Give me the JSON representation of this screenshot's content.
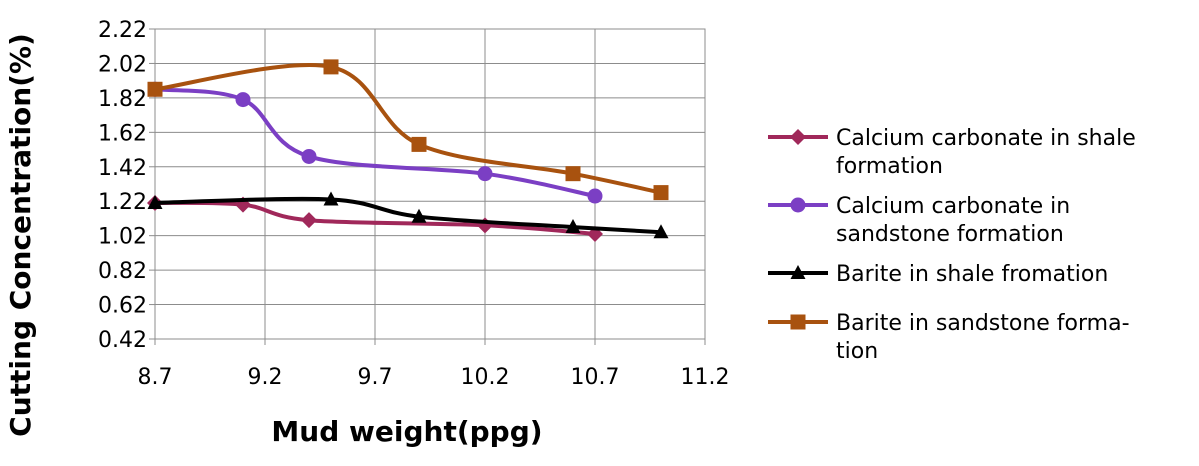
{
  "chart_data": {
    "type": "line",
    "xlabel": "Mud weight(ppg)",
    "ylabel": "Cutting Concentration(%)",
    "xlim": [
      8.7,
      11.2
    ],
    "ylim": [
      0.42,
      2.22
    ],
    "x_ticks": [
      "8.7",
      "9.2",
      "9.7",
      "10.2",
      "10.7",
      "11.2"
    ],
    "y_ticks": [
      "0.42",
      "0.62",
      "0.82",
      "1.02",
      "1.22",
      "1.42",
      "1.62",
      "1.82",
      "2.02",
      "2.22"
    ],
    "grid": true,
    "legend_position": "right",
    "series": [
      {
        "name": "Calcium carbonate in shale formation",
        "legend_lines": [
          "Calcium carbonate in shale",
          "formation"
        ],
        "color": "#A0285A",
        "marker": "diamond",
        "points": [
          [
            8.7,
            1.21
          ],
          [
            9.1,
            1.2
          ],
          [
            9.4,
            1.11
          ],
          [
            10.2,
            1.08
          ],
          [
            10.7,
            1.03
          ]
        ]
      },
      {
        "name": "Calcium carbonate in sandstone formation",
        "legend_lines": [
          "Calcium carbonate in",
          "sandstone formation"
        ],
        "color": "#7B3FC4",
        "marker": "circle",
        "points": [
          [
            8.7,
            1.87
          ],
          [
            9.1,
            1.81
          ],
          [
            9.4,
            1.48
          ],
          [
            10.2,
            1.38
          ],
          [
            10.7,
            1.25
          ]
        ]
      },
      {
        "name": "Barite in shale fromation",
        "legend_lines": [
          "Barite in shale fromation"
        ],
        "color": "#000000",
        "marker": "triangle",
        "points": [
          [
            8.7,
            1.21
          ],
          [
            9.5,
            1.23
          ],
          [
            9.9,
            1.13
          ],
          [
            10.6,
            1.07
          ],
          [
            11.0,
            1.04
          ]
        ]
      },
      {
        "name": "Barite in sandstone formation",
        "legend_lines": [
          "Barite in sandstone forma-",
          "tion"
        ],
        "color": "#A8520F",
        "marker": "square",
        "points": [
          [
            8.7,
            1.87
          ],
          [
            9.5,
            2.0
          ],
          [
            9.9,
            1.55
          ],
          [
            10.6,
            1.38
          ],
          [
            11.0,
            1.27
          ]
        ]
      }
    ]
  }
}
